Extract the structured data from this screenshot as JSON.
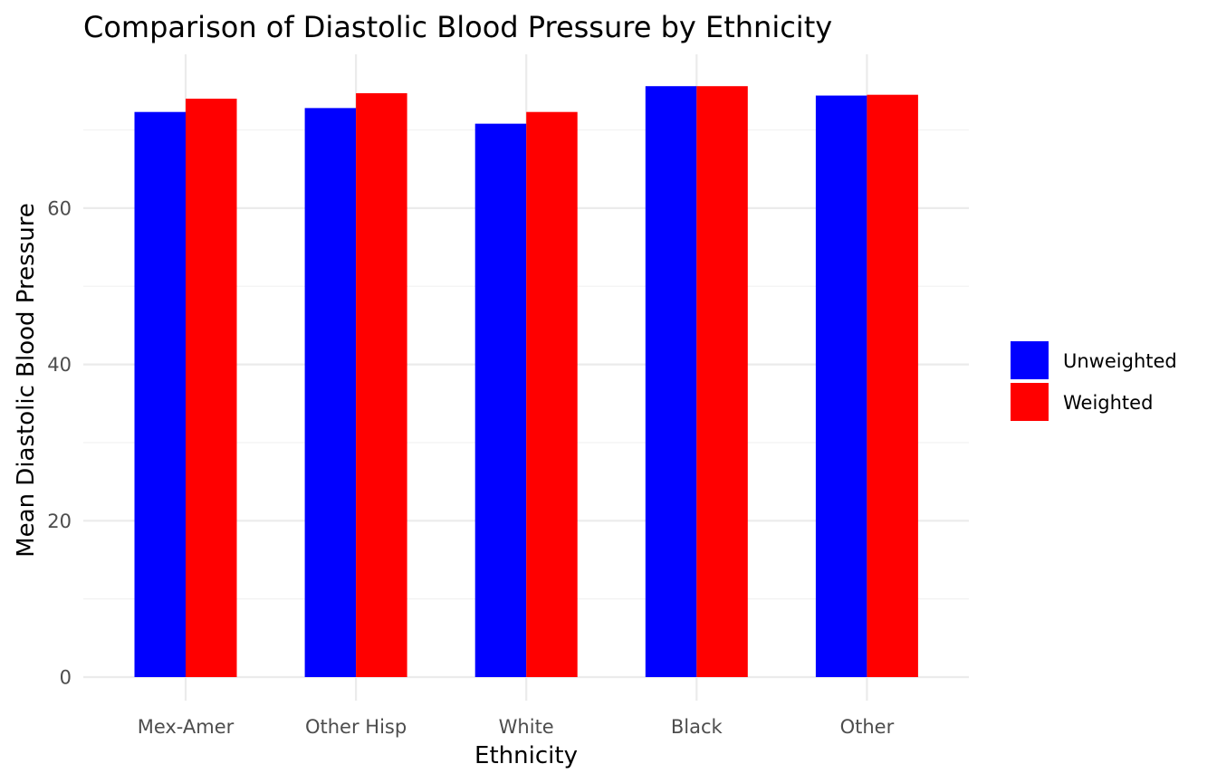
{
  "chart_data": {
    "type": "bar",
    "title": "Comparison of Diastolic Blood Pressure by Ethnicity",
    "xlabel": "Ethnicity",
    "ylabel": "Mean Diastolic Blood Pressure",
    "categories": [
      "Mex-Amer",
      "Other Hisp",
      "White",
      "Black",
      "Other"
    ],
    "series": [
      {
        "name": "Unweighted",
        "color": "#0000ff",
        "values": [
          72.3,
          72.8,
          70.8,
          75.6,
          74.4
        ]
      },
      {
        "name": "Weighted",
        "color": "#ff0000",
        "values": [
          74.0,
          74.7,
          72.3,
          75.6,
          74.5
        ]
      }
    ],
    "ylim": [
      0,
      79.4
    ],
    "yticks": [
      0,
      20,
      40,
      60
    ],
    "grid": true,
    "legend_position": "right",
    "theme": "minimal"
  }
}
